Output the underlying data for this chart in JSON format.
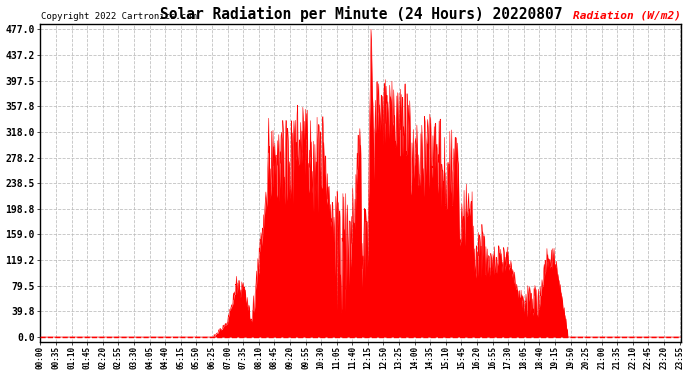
{
  "title": "Solar Radiation per Minute (24 Hours) 20220807",
  "copyright_text": "Copyright 2022 Cartronics.com",
  "ylabel": "Radiation (W/m2)",
  "ylabel_color": "#FF0000",
  "copyright_color": "#000000",
  "background_color": "#ffffff",
  "plot_bg_color": "#ffffff",
  "fill_color": "#FF0000",
  "line_color": "#FF0000",
  "grid_color": "#bbbbbb",
  "zero_line_color": "#FF0000",
  "yticks": [
    0.0,
    39.8,
    79.5,
    119.2,
    159.0,
    198.8,
    238.5,
    278.2,
    318.0,
    357.8,
    397.5,
    437.2,
    477.0
  ],
  "ymax": 477.0,
  "ymin": 0.0,
  "total_minutes": 1440,
  "x_tick_labels": [
    "00:00",
    "00:35",
    "01:10",
    "01:45",
    "02:20",
    "02:55",
    "03:30",
    "04:05",
    "04:40",
    "05:15",
    "05:50",
    "06:25",
    "07:00",
    "07:35",
    "08:10",
    "08:45",
    "09:20",
    "09:55",
    "10:30",
    "11:05",
    "11:40",
    "12:15",
    "12:50",
    "13:25",
    "14:00",
    "14:35",
    "15:10",
    "15:45",
    "16:20",
    "16:55",
    "17:30",
    "18:05",
    "18:40",
    "19:15",
    "19:50",
    "20:25",
    "21:00",
    "21:35",
    "22:10",
    "22:45",
    "23:20",
    "23:55"
  ]
}
